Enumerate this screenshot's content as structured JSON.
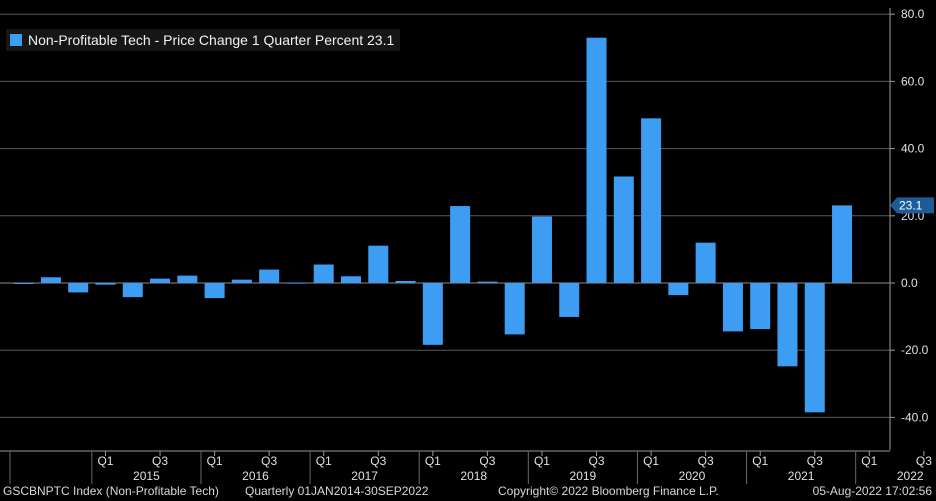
{
  "chart_data": {
    "type": "bar",
    "series": [
      {
        "name": "Non-Profitable Tech - Price Change 1 Quarter Percent",
        "last_value": "23.1",
        "color": "#3d9df2",
        "values": [
          -0.3,
          1.7,
          -2.8,
          -0.5,
          -4.2,
          1.3,
          2.2,
          -4.5,
          1.0,
          4.0,
          0.1,
          5.5,
          2.0,
          11.1,
          0.6,
          -18.4,
          22.9,
          0.4,
          -15.3,
          19.8,
          -10.1,
          73.0,
          31.7,
          49.0,
          -3.6,
          12.0,
          -14.4,
          -13.7,
          -24.8,
          -38.5,
          23.1
        ]
      }
    ],
    "quarters": [
      "Q2",
      "Q3",
      "Q4",
      "Q1",
      "Q2",
      "Q3",
      "Q4",
      "Q1",
      "Q2",
      "Q3",
      "Q4",
      "Q1",
      "Q2",
      "Q3",
      "Q4",
      "Q1",
      "Q2",
      "Q3",
      "Q4",
      "Q1",
      "Q2",
      "Q3",
      "Q4",
      "Q1",
      "Q2",
      "Q3",
      "Q4",
      "Q1",
      "Q2",
      "Q3",
      "Q4"
    ],
    "x_tick_labels": [
      "Q1",
      "Q3",
      "Q1",
      "Q3",
      "Q1",
      "Q3",
      "Q1",
      "Q3",
      "Q1",
      "Q3",
      "Q1",
      "Q3",
      "Q1",
      "Q3",
      "Q1",
      "Q3"
    ],
    "years": [
      "2015",
      "2016",
      "2017",
      "2018",
      "2019",
      "2020",
      "2021",
      "2022"
    ],
    "y_ticks": [
      80,
      60,
      40,
      20,
      0,
      -20,
      -40
    ],
    "y_tick_labels": [
      "80.0",
      "60.0",
      "40.0",
      "20.0",
      "0.0",
      "-20.0",
      "-40.0"
    ],
    "ylim": [
      -45,
      82
    ],
    "grid": true,
    "legend_position": "top-left"
  },
  "legend": {
    "label": "Non-Profitable Tech - Price Change 1 Quarter Percent 23.1"
  },
  "footer": {
    "ticker": "GSCBNPTC Index (Non-Profitable Tech)",
    "range": "Quarterly 01JAN2014-30SEP2022",
    "copyright": "Copyright© 2022 Bloomberg Finance L.P.",
    "timestamp": "05-Aug-2022 17:02:56"
  }
}
